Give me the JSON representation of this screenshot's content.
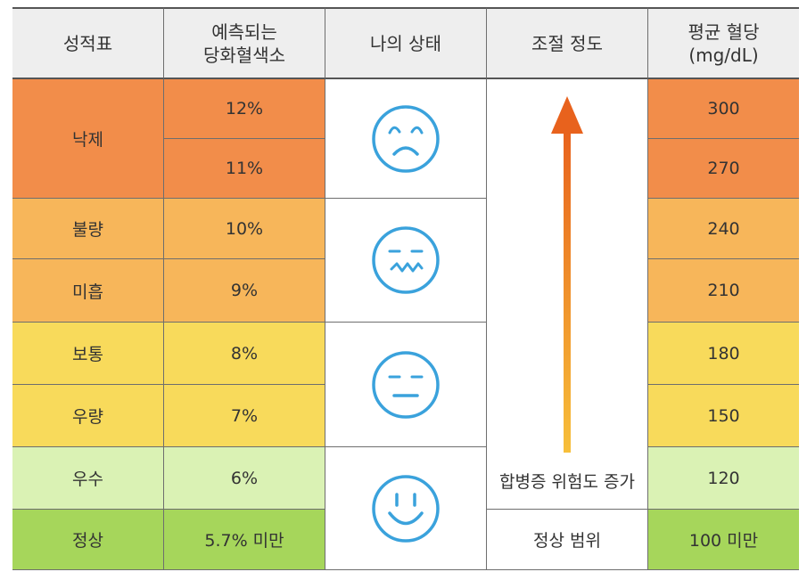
{
  "headers": {
    "grade": "성적표",
    "a1c_line1": "예측되는",
    "a1c_line2": "당화혈색소",
    "state": "나의 상태",
    "control": "조절 정도",
    "glucose_line1": "평균 혈당",
    "glucose_line2": "(mg/dL)"
  },
  "grades": {
    "fail": "낙제",
    "poor": "불량",
    "insufficient": "미흡",
    "average": "보통",
    "good": "우량",
    "excellent": "우수",
    "normal": "정상"
  },
  "a1c": [
    "12%",
    "11%",
    "10%",
    "9%",
    "8%",
    "7%",
    "6%",
    "5.7% 미만"
  ],
  "glucose": [
    "300",
    "270",
    "240",
    "210",
    "180",
    "150",
    "120",
    "100 미만"
  ],
  "control": {
    "risk_text": "합병증 위험도 증가",
    "normal_range": "정상 범위"
  },
  "faces": [
    "sad-face-icon",
    "wavy-mouth-face-icon",
    "neutral-face-icon",
    "smiley-face-icon"
  ],
  "colors": {
    "orange": "#f28d4a",
    "light_orange": "#f7b65a",
    "yellow": "#f8da5b",
    "light_green": "#daf2b4",
    "green": "#a6d65b",
    "icon_blue": "#3aa2dc"
  }
}
